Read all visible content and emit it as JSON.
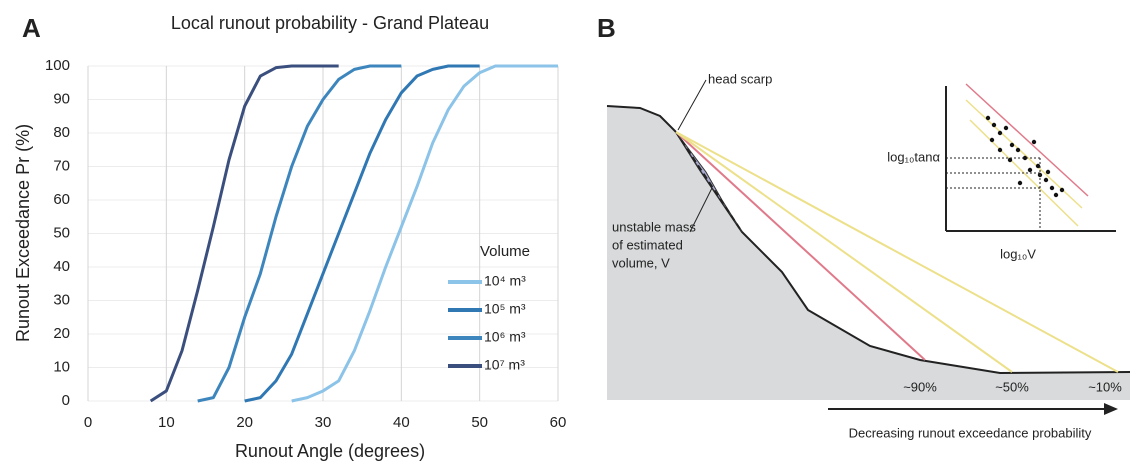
{
  "panel_labels": [
    "A",
    "B"
  ],
  "chart_data": {
    "type": "line",
    "title": "Local runout probability - Grand Plateau",
    "x_label": "Runout Angle (degrees)",
    "y_label": "Runout Exceedance Pr (%)",
    "x": [
      8,
      10,
      12,
      14,
      16,
      18,
      20,
      22,
      24,
      26,
      28,
      30,
      32,
      34,
      36,
      38,
      40,
      42,
      44,
      46,
      48,
      50,
      52,
      54,
      56,
      58,
      60
    ],
    "series": [
      {
        "name": "10⁴ m³",
        "color": "#8cc3e8",
        "values": [
          null,
          null,
          null,
          null,
          null,
          null,
          null,
          null,
          null,
          0,
          1,
          3,
          6,
          15,
          27,
          40,
          52,
          64,
          77,
          87,
          94,
          98,
          100,
          100,
          100,
          100,
          100
        ]
      },
      {
        "name": "10⁵ m³",
        "color": "#2f78b4",
        "values": [
          null,
          null,
          null,
          null,
          null,
          null,
          0,
          1,
          6,
          14,
          26,
          38,
          50,
          62,
          74,
          84,
          92,
          97,
          99,
          100,
          100,
          100,
          null,
          null,
          null,
          null,
          null
        ]
      },
      {
        "name": "10⁶ m³",
        "color": "#3d86bd",
        "values": [
          null,
          null,
          null,
          0,
          1,
          10,
          25,
          38,
          55,
          70,
          82,
          90,
          96,
          99,
          100,
          100,
          100,
          null,
          null,
          null,
          null,
          null,
          null,
          null,
          null,
          null,
          null
        ]
      },
      {
        "name": "10⁷ m³",
        "color": "#3b4f7e",
        "values": [
          0,
          3,
          15,
          33,
          52,
          72,
          88,
          97,
          99.5,
          100,
          100,
          100,
          100,
          null,
          null,
          null,
          null,
          null,
          null,
          null,
          null,
          null,
          null,
          null,
          null,
          null,
          null
        ]
      }
    ],
    "legend_title": "Volume",
    "legend": "lower right",
    "xlim": [
      0,
      60
    ],
    "xticks": [
      0,
      10,
      20,
      30,
      40,
      50,
      60
    ],
    "ylim": [
      0,
      100
    ],
    "yticks": [
      0,
      10,
      20,
      30,
      40,
      50,
      60,
      70,
      80,
      90,
      100
    ],
    "grid": true
  },
  "diagram": {
    "head_scarp": "head scarp",
    "unstable_mass": [
      "unstable mass",
      "of estimated",
      "volume, V"
    ],
    "runout_labels": [
      "~90%",
      "~50%",
      "~10%"
    ],
    "arrow_label": "Decreasing runout exceedance probability",
    "inset_y_label": "log₁₀tanα",
    "inset_x_label": "log₁₀V"
  }
}
